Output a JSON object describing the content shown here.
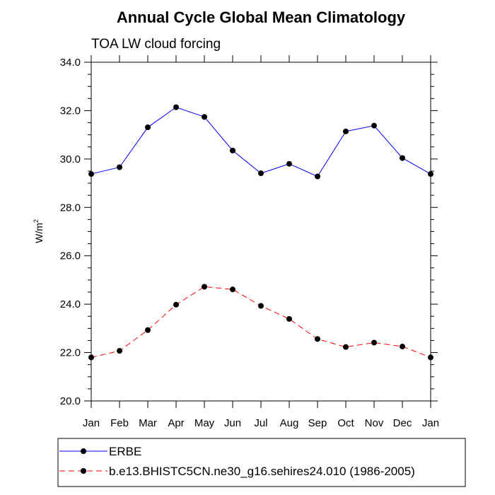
{
  "chart_data": {
    "type": "line",
    "title": "Annual Cycle Global Mean Climatology",
    "subtitle": "TOA LW cloud forcing",
    "ylabel": "W/m",
    "ylabel_superscript": "2",
    "xlabel": "",
    "categories": [
      "Jan",
      "Feb",
      "Mar",
      "Apr",
      "May",
      "Jun",
      "Jul",
      "Aug",
      "Sep",
      "Oct",
      "Nov",
      "Dec",
      "Jan"
    ],
    "ylim": [
      20.0,
      34.0
    ],
    "yticks": [
      "20.0",
      "22.0",
      "24.0",
      "26.0",
      "28.0",
      "30.0",
      "32.0",
      "34.0"
    ],
    "grid": false,
    "legend_position": "bottom",
    "series": [
      {
        "name": "ERBE",
        "color": "#0000ff",
        "dash": "solid",
        "marker": "circle",
        "values": [
          29.38,
          29.66,
          31.31,
          32.14,
          31.74,
          30.35,
          29.41,
          29.8,
          29.28,
          31.14,
          31.38,
          30.04,
          29.38
        ]
      },
      {
        "name": "b.e13.BHISTC5CN.ne30_g16.sehires24.010 (1986-2005)",
        "color": "#ff0000",
        "dash": "dashed",
        "marker": "circle",
        "values": [
          21.8,
          22.07,
          22.93,
          23.98,
          24.72,
          24.61,
          23.93,
          23.39,
          22.56,
          22.23,
          22.41,
          22.25,
          21.8
        ]
      }
    ]
  }
}
